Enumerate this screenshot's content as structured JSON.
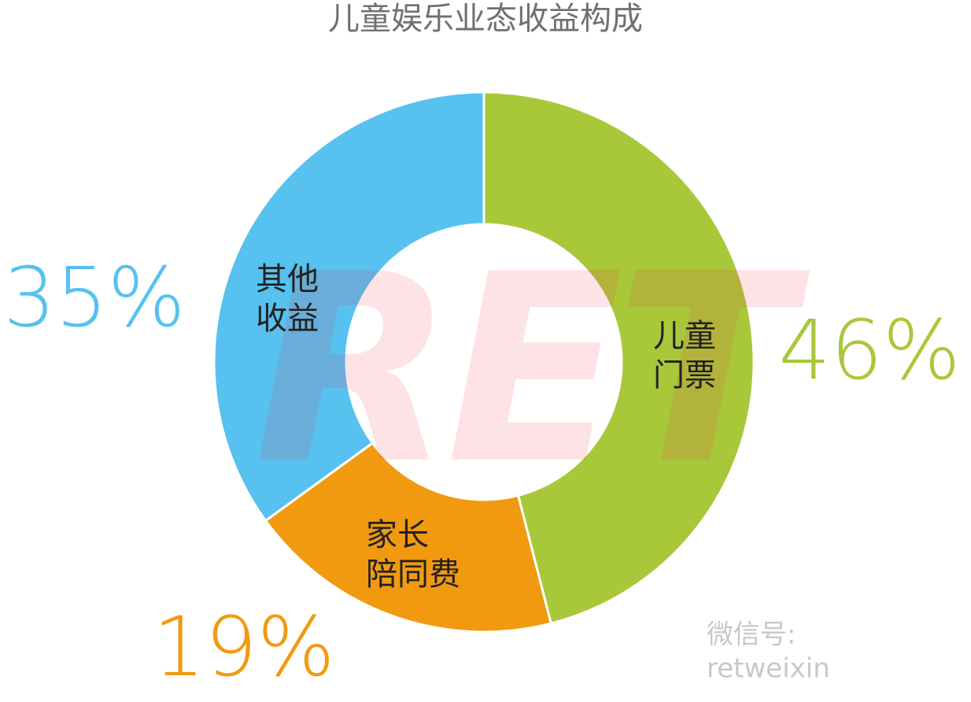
{
  "chart_data": {
    "type": "donut",
    "title": "儿童娱乐业态收益构成",
    "categories": [
      "儿童\n门票",
      "家长\n陪同费",
      "其他\n收益"
    ],
    "values": [
      46,
      19,
      35
    ],
    "value_labels": [
      "46%",
      "19%",
      "35%"
    ],
    "colors": [
      "#a8c83a",
      "#f19a10",
      "#57c1ef"
    ]
  },
  "watermark": "RET",
  "credit": "微信号: retweixin"
}
